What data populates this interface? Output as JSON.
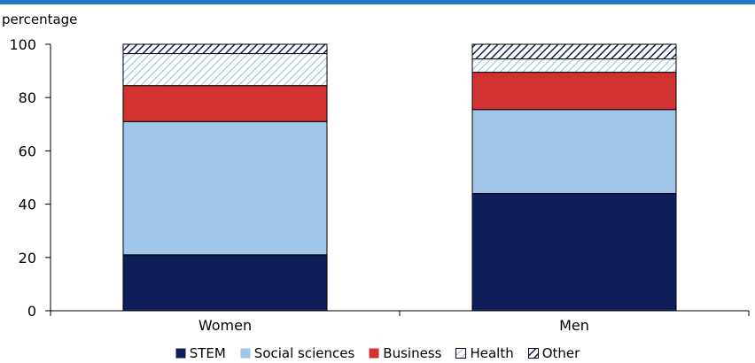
{
  "chart_data": {
    "type": "bar",
    "stacked": true,
    "categories": [
      "Women",
      "Men"
    ],
    "series": [
      {
        "name": "STEM",
        "values": [
          21,
          44
        ],
        "color": "#0f1d5a",
        "pattern": "solid"
      },
      {
        "name": "Social sciences",
        "values": [
          50,
          31.5
        ],
        "color": "#9fc6e8",
        "pattern": "solid"
      },
      {
        "name": "Business",
        "values": [
          13.5,
          14
        ],
        "color": "#d23232",
        "pattern": "solid"
      },
      {
        "name": "Health",
        "values": [
          12,
          5
        ],
        "color": "#9fc6e8",
        "pattern": "light-diagonal"
      },
      {
        "name": "Other",
        "values": [
          3.5,
          5.5
        ],
        "color": "#0f1d5a",
        "pattern": "dark-diagonal"
      }
    ],
    "ylabel": "percentage",
    "ylim": [
      0,
      100
    ],
    "yticks": [
      0,
      20,
      40,
      60,
      80,
      100
    ],
    "legend_position": "bottom",
    "grid": false
  }
}
